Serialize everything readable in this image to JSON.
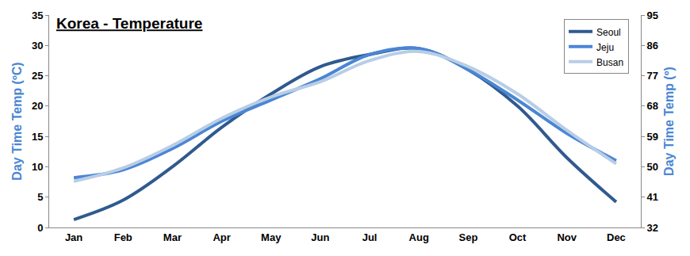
{
  "chart_data": {
    "type": "line",
    "title": "Korea - Temperature",
    "ylabel": "Day Time Temp (ºC)",
    "y2label": "Day Time Temp (º)",
    "categories": [
      "Jan",
      "Feb",
      "Mar",
      "Apr",
      "May",
      "Jun",
      "Jul",
      "Aug",
      "Sep",
      "Oct",
      "Nov",
      "Dec"
    ],
    "series": [
      {
        "name": "Seoul",
        "color": "#2f5a8f",
        "values": [
          1.3,
          4.5,
          10,
          16.5,
          22,
          26.5,
          28.5,
          29.5,
          26,
          20,
          11.5,
          4.2
        ]
      },
      {
        "name": "Jeju",
        "color": "#4a86d4",
        "values": [
          8.2,
          9.5,
          13,
          17.5,
          21,
          24.5,
          28.5,
          29.5,
          26,
          21,
          15.5,
          11
        ]
      },
      {
        "name": "Busan",
        "color": "#b8cde6",
        "values": [
          7.6,
          9.8,
          13.5,
          18,
          21.5,
          24,
          27.5,
          29,
          26.5,
          22,
          16,
          10.5
        ]
      }
    ],
    "ylim": [
      0,
      35
    ],
    "yticks": [
      0,
      5,
      10,
      15,
      20,
      25,
      30,
      35
    ],
    "y2lim": [
      32,
      95
    ],
    "y2ticks": [
      32,
      41,
      50,
      59,
      68,
      77,
      86,
      95
    ],
    "grid": false,
    "legend": "top right",
    "line_style": "spline"
  }
}
